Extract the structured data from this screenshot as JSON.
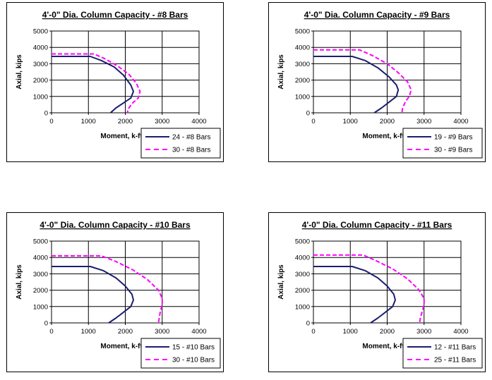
{
  "colors": {
    "series1": "#1b1e6e",
    "series2": "#ff00ff",
    "grid": "#000000"
  },
  "chart_data": [
    {
      "type": "line",
      "title": "4'-0\" Dia. Column Capacity - #8 Bars",
      "xlabel": "Moment, k-ft.",
      "ylabel": "Axial, kips",
      "xlim": [
        0,
        4000
      ],
      "ylim": [
        0,
        5000
      ],
      "xticks": [
        "0",
        "1000",
        "2000",
        "3000",
        "4000"
      ],
      "yticks": [
        "0",
        "1000",
        "2000",
        "3000",
        "4000",
        "5000"
      ],
      "grid": true,
      "legend_position": "bottom-right",
      "series": [
        {
          "name": "24 - #8 Bars",
          "style": "solid",
          "x": [
            0,
            1050,
            1350,
            1700,
            1950,
            2150,
            2220,
            2150,
            1950,
            1750,
            1600
          ],
          "y": [
            3450,
            3450,
            3200,
            2800,
            2300,
            1700,
            1300,
            900,
            600,
            300,
            0
          ]
        },
        {
          "name": "30 - #8 Bars",
          "style": "dashed",
          "x": [
            0,
            1150,
            1450,
            1800,
            2100,
            2300,
            2400,
            2350,
            2200,
            2100,
            2050
          ],
          "y": [
            3600,
            3600,
            3300,
            2850,
            2350,
            1800,
            1300,
            900,
            600,
            300,
            0
          ]
        }
      ]
    },
    {
      "type": "line",
      "title": "4'-0\" Dia. Column Capacity - #9 Bars",
      "xlabel": "Moment, k-ft.",
      "ylabel": "Axial, kips",
      "xlim": [
        0,
        4000
      ],
      "ylim": [
        0,
        5000
      ],
      "xticks": [
        "0",
        "1000",
        "2000",
        "3000",
        "4000"
      ],
      "yticks": [
        "0",
        "1000",
        "2000",
        "3000",
        "4000",
        "5000"
      ],
      "grid": true,
      "legend_position": "bottom-right",
      "series": [
        {
          "name": "19 - #9 Bars",
          "style": "solid",
          "x": [
            0,
            1050,
            1400,
            1750,
            2050,
            2250,
            2300,
            2250,
            2050,
            1850,
            1650
          ],
          "y": [
            3450,
            3450,
            3200,
            2750,
            2200,
            1700,
            1400,
            1000,
            650,
            300,
            0
          ]
        },
        {
          "name": "30 - #9 Bars",
          "style": "dashed",
          "x": [
            0,
            1250,
            1600,
            2000,
            2300,
            2550,
            2650,
            2600,
            2500,
            2420,
            2400
          ],
          "y": [
            3850,
            3850,
            3500,
            3000,
            2450,
            1900,
            1400,
            1000,
            700,
            300,
            0
          ]
        }
      ]
    },
    {
      "type": "line",
      "title": "4'-0\" Dia. Column Capacity - #10 Bars",
      "xlabel": "Moment, k-ft.",
      "ylabel": "Axial, kips",
      "xlim": [
        0,
        4000
      ],
      "ylim": [
        0,
        5000
      ],
      "xticks": [
        "0",
        "1000",
        "2000",
        "3000",
        "4000"
      ],
      "yticks": [
        "0",
        "1000",
        "2000",
        "3000",
        "4000",
        "5000"
      ],
      "grid": true,
      "legend_position": "bottom-right",
      "series": [
        {
          "name": "15 - #10 Bars",
          "style": "solid",
          "x": [
            0,
            1050,
            1400,
            1750,
            2000,
            2180,
            2220,
            2150,
            1950,
            1750,
            1550
          ],
          "y": [
            3450,
            3450,
            3200,
            2750,
            2250,
            1750,
            1400,
            1000,
            650,
            300,
            0
          ]
        },
        {
          "name": "30 - #10 Bars",
          "style": "dashed",
          "x": [
            0,
            1350,
            1750,
            2200,
            2600,
            2900,
            3000,
            3000,
            2950,
            2920,
            2900
          ],
          "y": [
            4100,
            4100,
            3750,
            3250,
            2650,
            2000,
            1500,
            1100,
            700,
            300,
            0
          ]
        }
      ]
    },
    {
      "type": "line",
      "title": "4'-0\" Dia. Column Capacity - #11 Bars",
      "xlabel": "Moment, k-ft.",
      "ylabel": "Axial, kips",
      "xlim": [
        0,
        4000
      ],
      "ylim": [
        0,
        5000
      ],
      "xticks": [
        "0",
        "1000",
        "2000",
        "3000",
        "4000"
      ],
      "yticks": [
        "0",
        "1000",
        "2000",
        "3000",
        "4000",
        "5000"
      ],
      "grid": true,
      "legend_position": "bottom-right",
      "series": [
        {
          "name": "12 - #11 Bars",
          "style": "solid",
          "x": [
            0,
            1050,
            1400,
            1750,
            2000,
            2180,
            2220,
            2150,
            1950,
            1750,
            1550
          ],
          "y": [
            3450,
            3450,
            3200,
            2750,
            2250,
            1750,
            1400,
            1000,
            650,
            300,
            0
          ]
        },
        {
          "name": "25 - #11 Bars",
          "style": "dashed",
          "x": [
            0,
            1350,
            1700,
            2150,
            2550,
            2850,
            3000,
            3000,
            2950,
            2900,
            2880
          ],
          "y": [
            4150,
            4150,
            3800,
            3300,
            2700,
            2050,
            1500,
            1100,
            700,
            300,
            0
          ]
        }
      ]
    }
  ]
}
